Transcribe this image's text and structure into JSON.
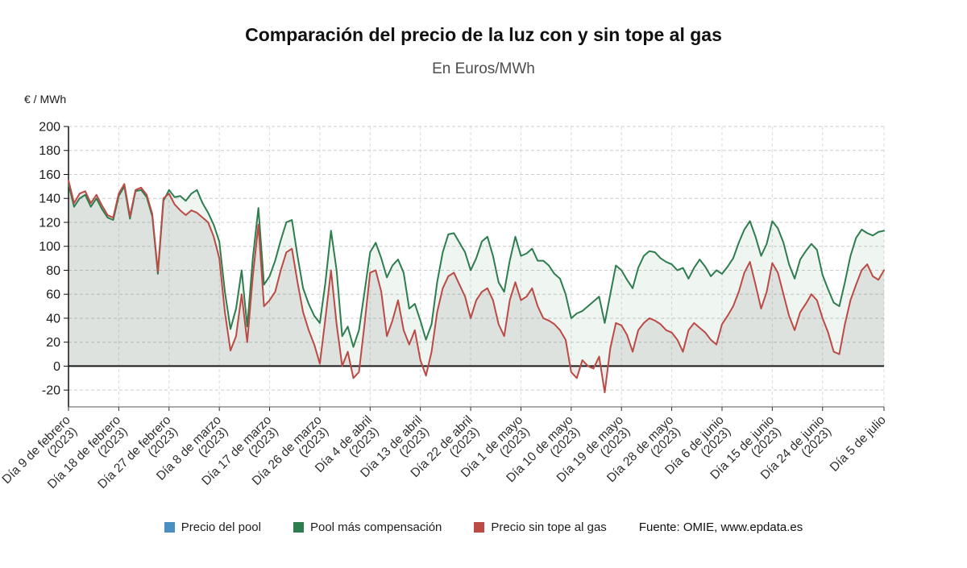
{
  "header": {
    "title": "Comparación del precio de la luz con y sin tope al gas",
    "subtitle": "En Euros/MWh"
  },
  "axis": {
    "y_unit_label": "€ / MWh"
  },
  "legend": {
    "items": [
      {
        "label": "Precio del pool",
        "color": "#4a8fc2"
      },
      {
        "label": "Pool más compensación",
        "color": "#2e7d4e"
      },
      {
        "label": "Precio sin tope al gas",
        "color": "#bd4b45"
      }
    ],
    "source_label": "Fuente: OMIE, www.epdata.es"
  },
  "chart_data": {
    "type": "line",
    "title": "Comparación del precio de la luz con y sin tope al gas",
    "subtitle": "En Euros/MWh",
    "ylabel": "€ / MWh",
    "xlabel": "",
    "ylim": [
      -34,
      200
    ],
    "y_ticks": [
      200,
      180,
      160,
      140,
      120,
      100,
      80,
      60,
      40,
      20,
      0,
      -20
    ],
    "grid": "dashed",
    "legend_position": "bottom",
    "n_points": 147,
    "x_range": [
      "Día 9 de febrero (2023)",
      "Día 5 de julio (2023)"
    ],
    "x_ticks": [
      {
        "day": 0,
        "line1": "Día 9 de febrero",
        "line2": "(2023)"
      },
      {
        "day": 9,
        "line1": "Día 18 de febrero",
        "line2": "(2023)"
      },
      {
        "day": 18,
        "line1": "Día 27 de febrero",
        "line2": "(2023)"
      },
      {
        "day": 27,
        "line1": "Día 8 de marzo",
        "line2": "(2023)"
      },
      {
        "day": 36,
        "line1": "Día 17 de marzo",
        "line2": "(2023)"
      },
      {
        "day": 45,
        "line1": "Día 26 de marzo",
        "line2": "(2023)"
      },
      {
        "day": 54,
        "line1": "Día 4 de abril",
        "line2": "(2023)"
      },
      {
        "day": 63,
        "line1": "Día 13 de abril",
        "line2": "(2023)"
      },
      {
        "day": 72,
        "line1": "Día 22 de abril",
        "line2": "(2023)"
      },
      {
        "day": 81,
        "line1": "Día 1 de mayo",
        "line2": "(2023)"
      },
      {
        "day": 90,
        "line1": "Día 10 de mayo",
        "line2": "(2023)"
      },
      {
        "day": 99,
        "line1": "Día 19 de mayo",
        "line2": "(2023)"
      },
      {
        "day": 108,
        "line1": "Día 28 de mayo",
        "line2": "(2023)"
      },
      {
        "day": 117,
        "line1": "Día 6 de junio",
        "line2": "(2023)"
      },
      {
        "day": 126,
        "line1": "Día 15 de junio",
        "line2": "(2023)"
      },
      {
        "day": 135,
        "line1": "Día 24 de junio",
        "line2": "(2023)"
      },
      {
        "day": 146,
        "line1": "Día 5 de julio",
        "line2": ""
      }
    ],
    "series": [
      {
        "name": "Precio del pool",
        "color": "#4a8fc2",
        "note": "Not visibly distinct in the chart; drawn beneath and coinciding with 'Precio sin tope al gas'",
        "values": [
          155,
          136,
          144,
          146,
          136,
          143,
          134,
          126,
          124,
          144,
          152,
          125,
          147,
          149,
          143,
          127,
          79,
          140,
          144,
          135,
          130,
          126,
          130,
          128,
          124,
          120,
          108,
          90,
          45,
          13,
          25,
          60,
          20,
          75,
          118,
          50,
          55,
          62,
          80,
          95,
          98,
          70,
          45,
          30,
          18,
          2,
          40,
          80,
          35,
          0,
          12,
          -10,
          -5,
          35,
          78,
          80,
          62,
          25,
          38,
          55,
          30,
          18,
          30,
          5,
          -8,
          12,
          45,
          65,
          75,
          78,
          68,
          58,
          40,
          55,
          62,
          65,
          55,
          35,
          25,
          55,
          70,
          55,
          58,
          65,
          50,
          40,
          38,
          35,
          30,
          22,
          -5,
          -10,
          5,
          0,
          -2,
          8,
          -22,
          15,
          36,
          34,
          26,
          12,
          30,
          36,
          40,
          38,
          35,
          30,
          28,
          22,
          12,
          30,
          36,
          32,
          28,
          22,
          18,
          35,
          42,
          50,
          62,
          78,
          87,
          68,
          48,
          62,
          86,
          78,
          60,
          42,
          30,
          45,
          52,
          60,
          55,
          40,
          28,
          12,
          10,
          35,
          55,
          68,
          80,
          85,
          75,
          72,
          80
        ]
      },
      {
        "name": "Pool más compensación",
        "color": "#2e7d4e",
        "values": [
          152,
          133,
          140,
          143,
          133,
          140,
          131,
          124,
          122,
          142,
          150,
          123,
          146,
          147,
          141,
          125,
          77,
          138,
          147,
          141,
          142,
          138,
          144,
          147,
          136,
          128,
          118,
          104,
          62,
          31,
          48,
          80,
          33,
          90,
          132,
          68,
          75,
          88,
          105,
          120,
          122,
          92,
          65,
          52,
          42,
          36,
          70,
          113,
          80,
          25,
          33,
          16,
          30,
          62,
          95,
          103,
          90,
          74,
          84,
          89,
          78,
          48,
          52,
          38,
          22,
          35,
          70,
          95,
          110,
          111,
          103,
          95,
          80,
          90,
          104,
          108,
          92,
          70,
          62,
          88,
          108,
          92,
          94,
          98,
          88,
          88,
          84,
          77,
          73,
          60,
          40,
          44,
          46,
          50,
          54,
          58,
          36,
          60,
          84,
          80,
          72,
          65,
          82,
          92,
          96,
          95,
          90,
          87,
          85,
          80,
          82,
          73,
          82,
          89,
          83,
          75,
          80,
          77,
          83,
          90,
          103,
          114,
          121,
          108,
          92,
          102,
          121,
          115,
          103,
          85,
          73,
          89,
          96,
          102,
          97,
          76,
          64,
          53,
          50,
          70,
          92,
          107,
          114,
          111,
          109,
          112,
          113
        ]
      },
      {
        "name": "Precio sin tope al gas",
        "color": "#bd4b45",
        "values": [
          155,
          136,
          144,
          146,
          136,
          143,
          134,
          126,
          124,
          144,
          152,
          125,
          147,
          149,
          143,
          127,
          79,
          140,
          144,
          135,
          130,
          126,
          130,
          128,
          124,
          120,
          108,
          90,
          45,
          13,
          25,
          60,
          20,
          75,
          118,
          50,
          55,
          62,
          80,
          95,
          98,
          70,
          45,
          30,
          18,
          2,
          40,
          80,
          35,
          0,
          12,
          -10,
          -5,
          35,
          78,
          80,
          62,
          25,
          38,
          55,
          30,
          18,
          30,
          5,
          -8,
          12,
          45,
          65,
          75,
          78,
          68,
          58,
          40,
          55,
          62,
          65,
          55,
          35,
          25,
          55,
          70,
          55,
          58,
          65,
          50,
          40,
          38,
          35,
          30,
          22,
          -5,
          -10,
          5,
          0,
          -2,
          8,
          -22,
          15,
          36,
          34,
          26,
          12,
          30,
          36,
          40,
          38,
          35,
          30,
          28,
          22,
          12,
          30,
          36,
          32,
          28,
          22,
          18,
          35,
          42,
          50,
          62,
          78,
          87,
          68,
          48,
          62,
          86,
          78,
          60,
          42,
          30,
          45,
          52,
          60,
          55,
          40,
          28,
          12,
          10,
          35,
          55,
          68,
          80,
          85,
          75,
          72,
          80
        ]
      }
    ]
  }
}
